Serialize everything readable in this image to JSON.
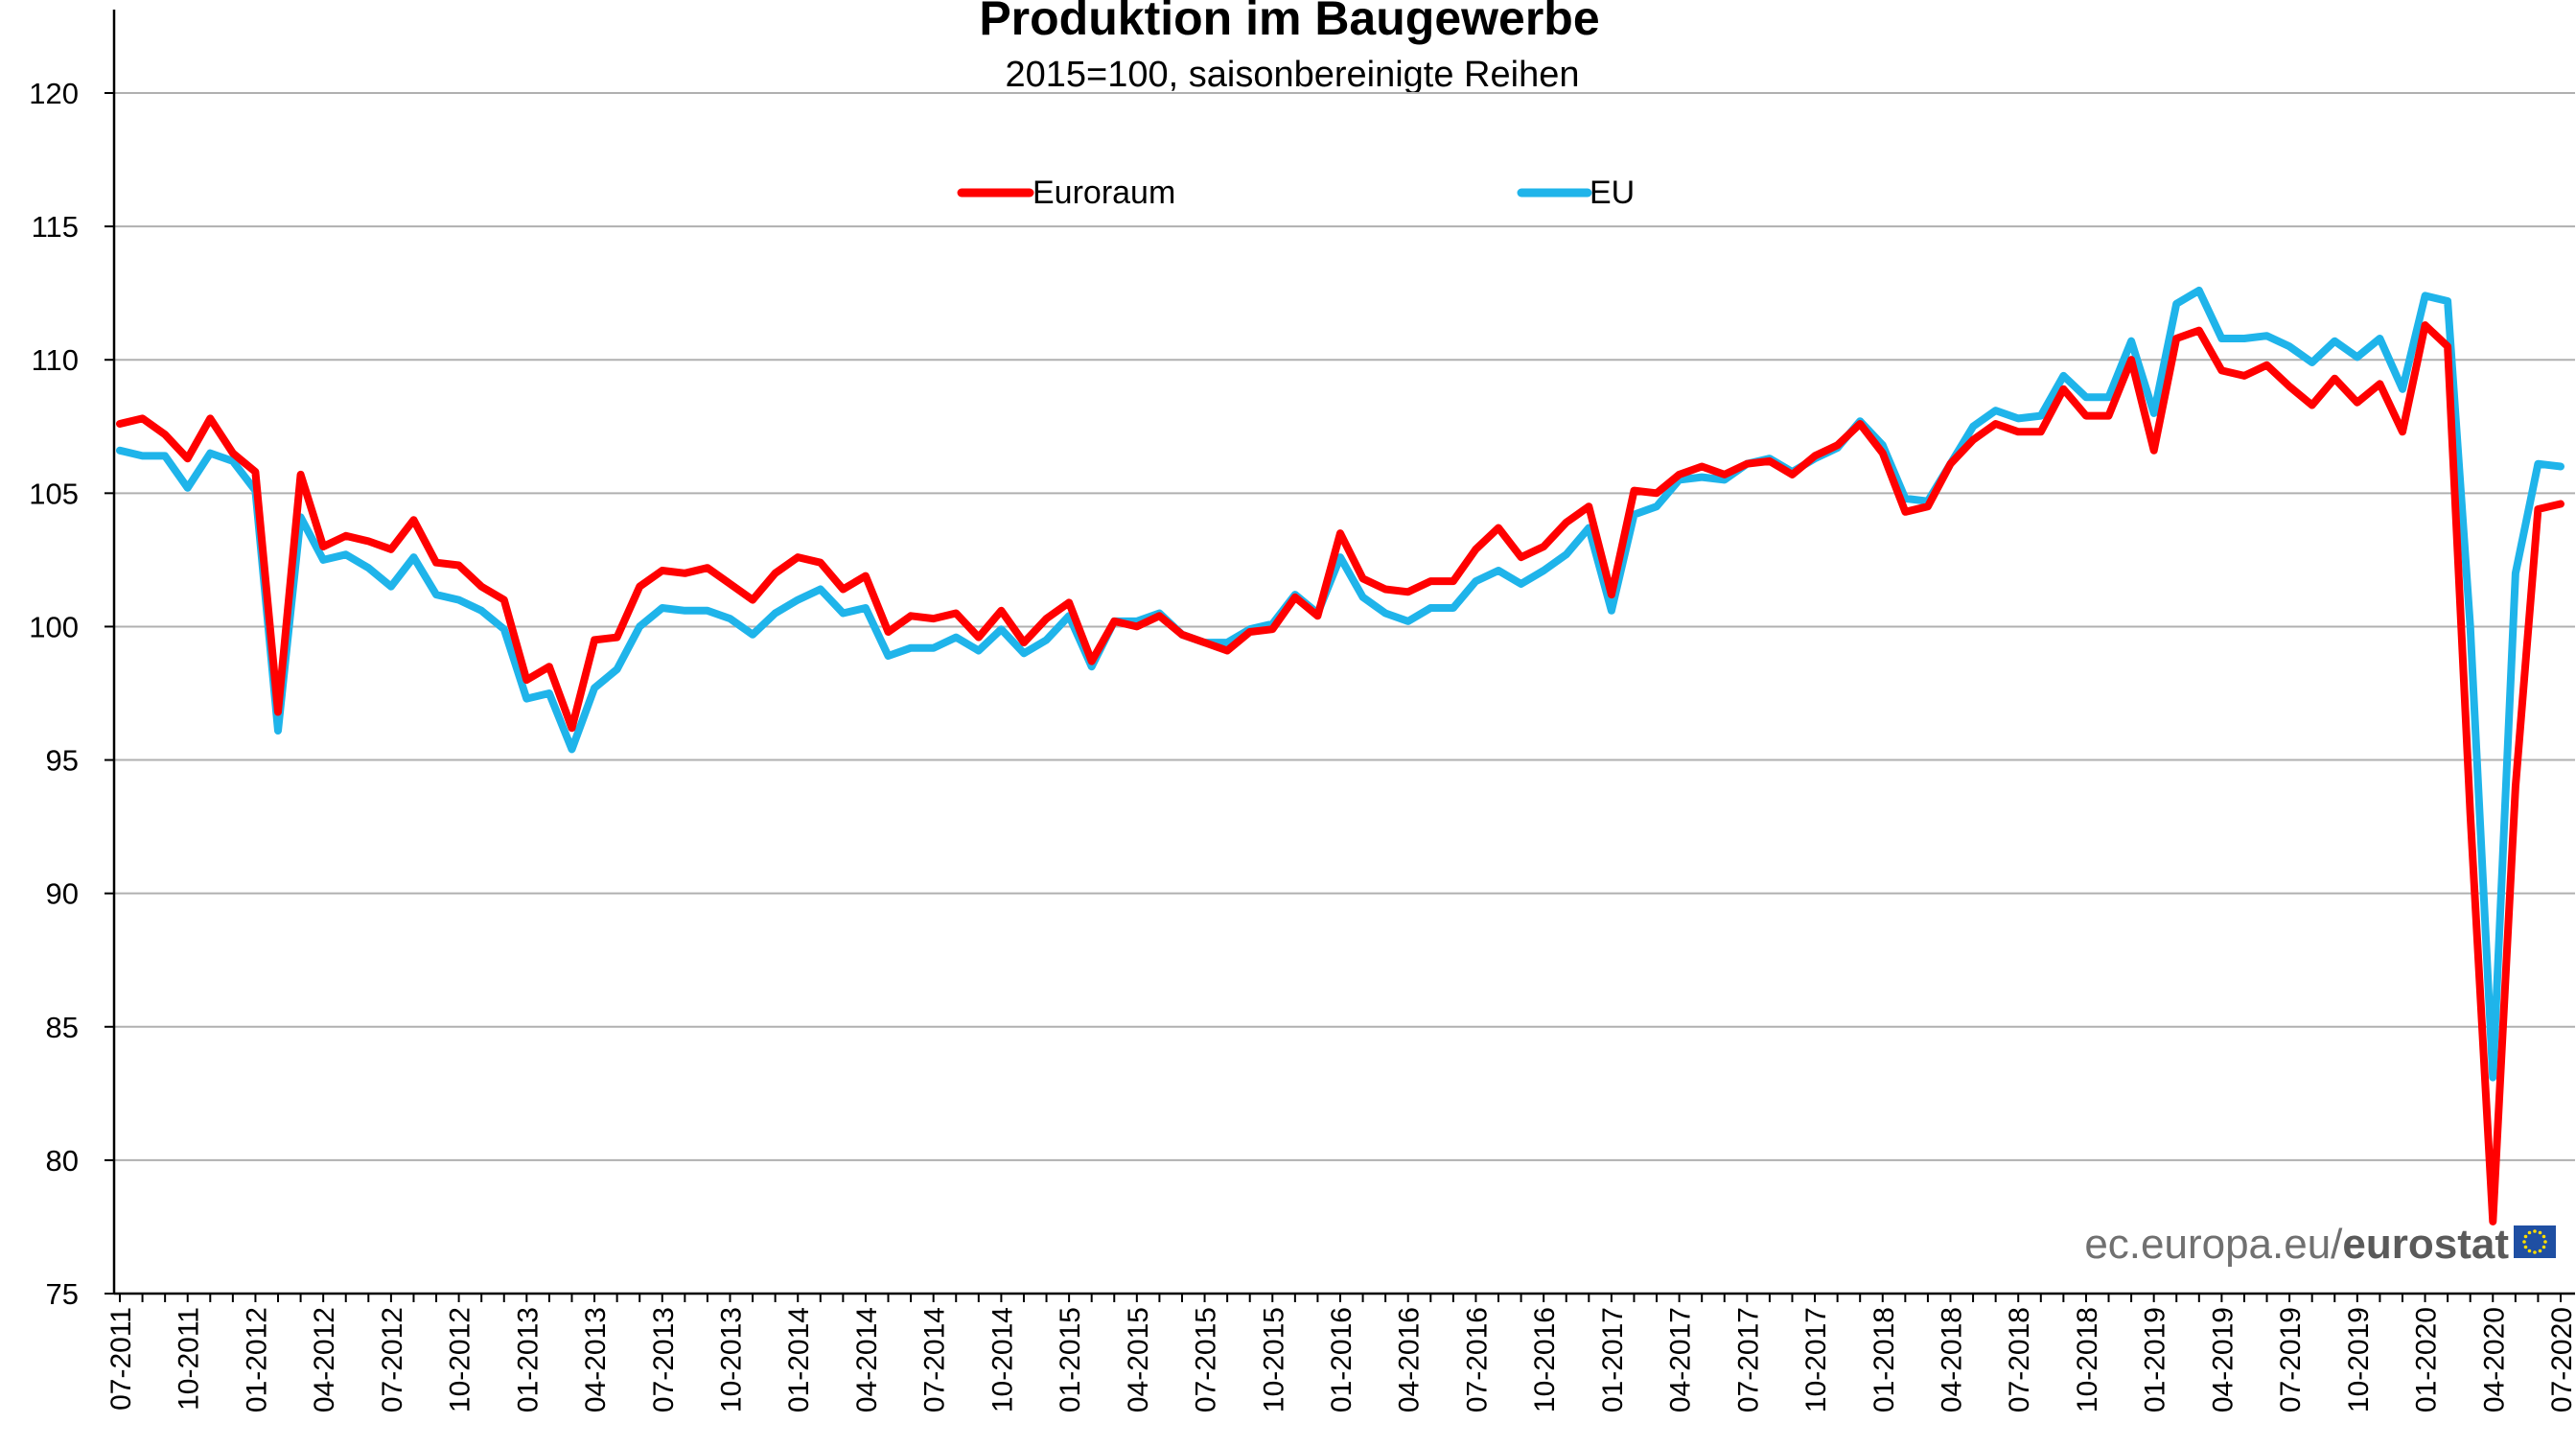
{
  "chart_data": {
    "type": "line",
    "title": "Produktion im Baugewerbe",
    "subtitle": "2015=100, saisonbereinigte Reihen",
    "ylim": [
      75,
      120
    ],
    "yticks": [
      75,
      80,
      85,
      90,
      95,
      100,
      105,
      110,
      115,
      120
    ],
    "grid": true,
    "legend_position": "top-center",
    "x": [
      "07-2011",
      "08-2011",
      "09-2011",
      "10-2011",
      "11-2011",
      "12-2011",
      "01-2012",
      "02-2012",
      "03-2012",
      "04-2012",
      "05-2012",
      "06-2012",
      "07-2012",
      "08-2012",
      "09-2012",
      "10-2012",
      "11-2012",
      "12-2012",
      "01-2013",
      "02-2013",
      "03-2013",
      "04-2013",
      "05-2013",
      "06-2013",
      "07-2013",
      "08-2013",
      "09-2013",
      "10-2013",
      "11-2013",
      "12-2013",
      "01-2014",
      "02-2014",
      "03-2014",
      "04-2014",
      "05-2014",
      "06-2014",
      "07-2014",
      "08-2014",
      "09-2014",
      "10-2014",
      "11-2014",
      "12-2014",
      "01-2015",
      "02-2015",
      "03-2015",
      "04-2015",
      "05-2015",
      "06-2015",
      "07-2015",
      "08-2015",
      "09-2015",
      "10-2015",
      "11-2015",
      "12-2015",
      "01-2016",
      "02-2016",
      "03-2016",
      "04-2016",
      "05-2016",
      "06-2016",
      "07-2016",
      "08-2016",
      "09-2016",
      "10-2016",
      "11-2016",
      "12-2016",
      "01-2017",
      "02-2017",
      "03-2017",
      "04-2017",
      "05-2017",
      "06-2017",
      "07-2017",
      "08-2017",
      "09-2017",
      "10-2017",
      "11-2017",
      "12-2017",
      "01-2018",
      "02-2018",
      "03-2018",
      "04-2018",
      "05-2018",
      "06-2018",
      "07-2018",
      "08-2018",
      "09-2018",
      "10-2018",
      "11-2018",
      "12-2018",
      "01-2019",
      "02-2019",
      "03-2019",
      "04-2019",
      "05-2019",
      "06-2019",
      "07-2019",
      "08-2019",
      "09-2019",
      "10-2019",
      "11-2019",
      "12-2019",
      "01-2020",
      "02-2020",
      "03-2020",
      "04-2020",
      "05-2020",
      "06-2020",
      "07-2020"
    ],
    "xtick_labels": [
      "07-2011",
      "10-2011",
      "01-2012",
      "04-2012",
      "07-2012",
      "10-2012",
      "01-2013",
      "04-2013",
      "07-2013",
      "10-2013",
      "01-2014",
      "04-2014",
      "07-2014",
      "10-2014",
      "01-2015",
      "04-2015",
      "07-2015",
      "10-2015",
      "01-2016",
      "04-2016",
      "07-2016",
      "10-2016",
      "01-2017",
      "04-2017",
      "07-2017",
      "10-2017",
      "01-2018",
      "04-2018",
      "07-2018",
      "10-2018",
      "01-2019",
      "04-2019",
      "07-2019",
      "10-2019",
      "01-2020",
      "04-2020",
      "07-2020"
    ],
    "series": [
      {
        "name": "Euroraum",
        "color": "#ff0000",
        "values": [
          107.6,
          107.8,
          107.2,
          106.3,
          107.8,
          106.5,
          105.8,
          96.8,
          105.7,
          103.0,
          103.4,
          103.2,
          102.9,
          104.0,
          102.4,
          102.3,
          101.5,
          101.0,
          98.0,
          98.5,
          96.2,
          99.5,
          99.6,
          101.5,
          102.1,
          102.0,
          102.2,
          101.6,
          101.0,
          102.0,
          102.6,
          102.4,
          101.4,
          101.9,
          99.8,
          100.4,
          100.3,
          100.5,
          99.6,
          100.6,
          99.4,
          100.3,
          100.9,
          98.7,
          100.2,
          100.0,
          100.4,
          99.7,
          99.4,
          99.1,
          99.8,
          99.9,
          101.1,
          100.4,
          103.5,
          101.8,
          101.4,
          101.3,
          101.7,
          101.7,
          102.9,
          103.7,
          102.6,
          103.0,
          103.9,
          104.5,
          101.2,
          105.1,
          105.0,
          105.7,
          106.0,
          105.7,
          106.1,
          106.2,
          105.7,
          106.4,
          106.8,
          107.6,
          106.5,
          104.3,
          104.5,
          106.1,
          107.0,
          107.6,
          107.3,
          107.3,
          108.9,
          107.9,
          107.9,
          110.0,
          106.6,
          110.8,
          111.1,
          109.6,
          109.4,
          109.8,
          109.0,
          108.3,
          109.3,
          108.4,
          109.1,
          107.3,
          111.3,
          110.5,
          93.0,
          77.7,
          94.0,
          104.4,
          104.6
        ]
      },
      {
        "name": "EU",
        "color": "#1fb4ea",
        "values": [
          106.6,
          106.4,
          106.4,
          105.2,
          106.5,
          106.2,
          105.1,
          96.1,
          104.1,
          102.5,
          102.7,
          102.2,
          101.5,
          102.6,
          101.2,
          101.0,
          100.6,
          99.9,
          97.3,
          97.5,
          95.4,
          97.7,
          98.4,
          100.0,
          100.7,
          100.6,
          100.6,
          100.3,
          99.7,
          100.5,
          101.0,
          101.4,
          100.5,
          100.7,
          98.9,
          99.2,
          99.2,
          99.6,
          99.1,
          99.9,
          99.0,
          99.5,
          100.4,
          98.5,
          100.2,
          100.2,
          100.5,
          99.7,
          99.4,
          99.4,
          99.9,
          100.1,
          101.2,
          100.5,
          102.6,
          101.1,
          100.5,
          100.2,
          100.7,
          100.7,
          101.7,
          102.1,
          101.6,
          102.1,
          102.7,
          103.7,
          100.6,
          104.2,
          104.5,
          105.5,
          105.6,
          105.5,
          106.1,
          106.3,
          105.8,
          106.3,
          106.7,
          107.7,
          106.8,
          104.8,
          104.7,
          106.1,
          107.5,
          108.1,
          107.8,
          107.9,
          109.4,
          108.6,
          108.6,
          110.7,
          108.0,
          112.1,
          112.6,
          110.8,
          110.8,
          110.9,
          110.5,
          109.9,
          110.7,
          110.1,
          110.8,
          108.9,
          112.4,
          112.2,
          100.0,
          83.1,
          102.0,
          106.1,
          106.0
        ]
      }
    ]
  },
  "source": {
    "domain": "ec.europa.eu/",
    "brand": "eurostat",
    "flag_color": "#1f4fa3",
    "star_color": "#ffdd00"
  }
}
